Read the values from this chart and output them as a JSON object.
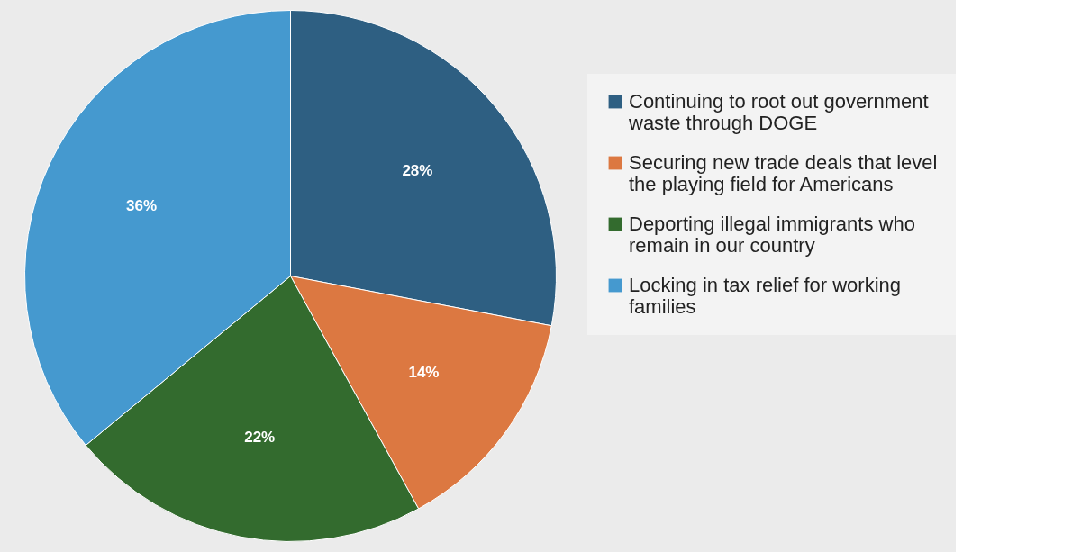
{
  "chart_data": {
    "type": "pie",
    "categories": [
      "Continuing to root out government waste through DOGE",
      "Securing new trade deals that level the playing field for Americans",
      "Deporting illegal immigrants who remain in our country",
      "Locking in tax relief for working families"
    ],
    "values": [
      28,
      14,
      22,
      36
    ],
    "colors": [
      "#2e5f82",
      "#dc7841",
      "#336b2e",
      "#4599cf"
    ],
    "value_labels": [
      "28%",
      "14%",
      "22%",
      "36%"
    ],
    "legend": "right"
  }
}
